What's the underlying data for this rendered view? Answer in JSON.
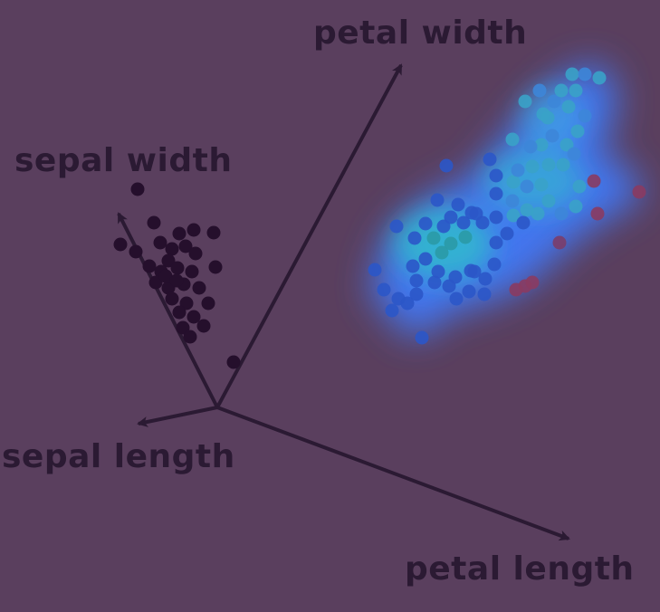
{
  "axes": {
    "petal_width": "petal width",
    "sepal_width": "sepal width",
    "sepal_length": "sepal length",
    "petal_length": "petal length"
  },
  "colors": {
    "background": "#5a3f5e",
    "ink": "#2b1a33",
    "cluster_a": "#250f2c",
    "cluster_b_glow": "#3f8cff",
    "cluster_b_core": "#27c4c9"
  }
}
